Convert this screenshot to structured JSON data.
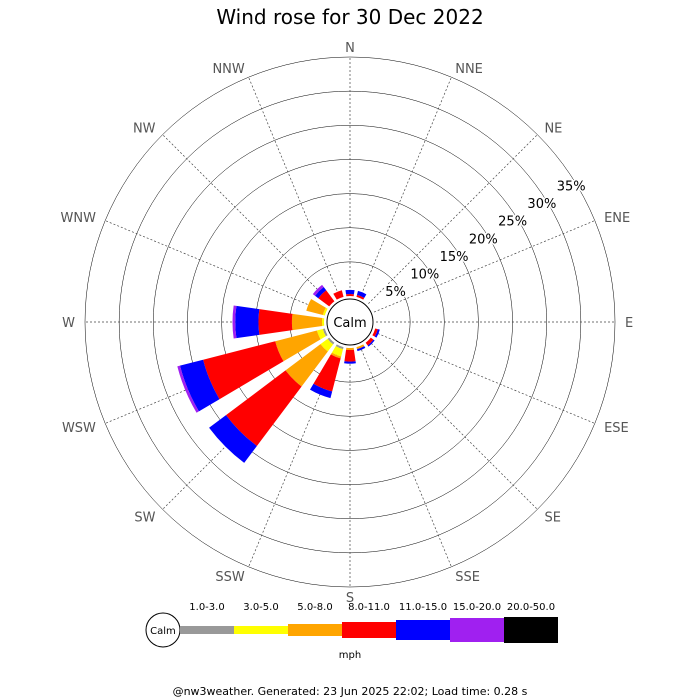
{
  "chart_data": {
    "type": "wind-rose",
    "title": "Wind rose for 30 Dec 2022",
    "units": "mph",
    "calm_label": "Calm",
    "directions": [
      "N",
      "NNE",
      "NE",
      "ENE",
      "E",
      "ESE",
      "SE",
      "SSE",
      "S",
      "SSW",
      "SW",
      "WSW",
      "W",
      "WNW",
      "NW",
      "NNW"
    ],
    "ring_labels": [
      "5%",
      "10%",
      "15%",
      "20%",
      "25%",
      "30%",
      "35%"
    ],
    "ring_values": [
      5,
      10,
      15,
      20,
      25,
      30,
      35
    ],
    "rmax": 35,
    "speed_bins": [
      {
        "label": "1.0-3.0",
        "color": "#999999"
      },
      {
        "label": "3.0-5.0",
        "color": "#ffff00"
      },
      {
        "label": "5.0-8.0",
        "color": "#ffa500"
      },
      {
        "label": "8.0-11.0",
        "color": "#ff0000"
      },
      {
        "label": "11.0-15.0",
        "color": "#0000ff"
      },
      {
        "label": "15.0-20.0",
        "color": "#a020f0"
      },
      {
        "label": "20.0-50.0",
        "color": "#000000"
      }
    ],
    "frequencies": {
      "N": [
        0.0,
        0.0,
        0.0,
        0.3,
        0.6,
        0.0,
        0.0
      ],
      "NNE": [
        0.0,
        0.0,
        0.0,
        0.3,
        0.6,
        0.0,
        0.0
      ],
      "NE": [
        0.0,
        0.0,
        0.0,
        0.0,
        0.0,
        0.0,
        0.0
      ],
      "ENE": [
        0.0,
        0.0,
        0.0,
        0.0,
        0.0,
        0.0,
        0.0
      ],
      "E": [
        0.0,
        0.0,
        0.0,
        0.0,
        0.0,
        0.0,
        0.0
      ],
      "ESE": [
        0.0,
        0.0,
        0.0,
        0.4,
        0.3,
        0.0,
        0.0
      ],
      "SE": [
        0.0,
        0.0,
        0.0,
        0.5,
        0.2,
        0.0,
        0.0
      ],
      "SSE": [
        0.0,
        0.0,
        0.3,
        0.0,
        0.3,
        0.0,
        0.0
      ],
      "S": [
        0.0,
        0.0,
        0.3,
        1.7,
        0.3,
        0.0,
        0.0
      ],
      "SSW": [
        0.3,
        1.1,
        0.3,
        5.0,
        1.0,
        0.0,
        0.0
      ],
      "SW": [
        0.3,
        1.3,
        6.4,
        10.9,
        3.1,
        0.0,
        0.0
      ],
      "WSW": [
        0.3,
        0.9,
        6.3,
        10.9,
        3.5,
        0.4,
        0.0
      ],
      "W": [
        0.0,
        0.3,
        4.4,
        4.9,
        3.4,
        0.4,
        0.0
      ],
      "WNW": [
        0.0,
        0.3,
        2.5,
        0.0,
        0.0,
        0.0,
        0.0
      ],
      "NW": [
        0.0,
        0.0,
        0.0,
        2.0,
        0.6,
        0.4,
        0.0
      ],
      "NNW": [
        0.0,
        0.0,
        0.0,
        1.0,
        0.0,
        0.0,
        0.0
      ]
    },
    "grid": true
  },
  "footer": "@nw3weather. Generated: 23 Jun 2025 22:02; Load time: 0.28 s"
}
